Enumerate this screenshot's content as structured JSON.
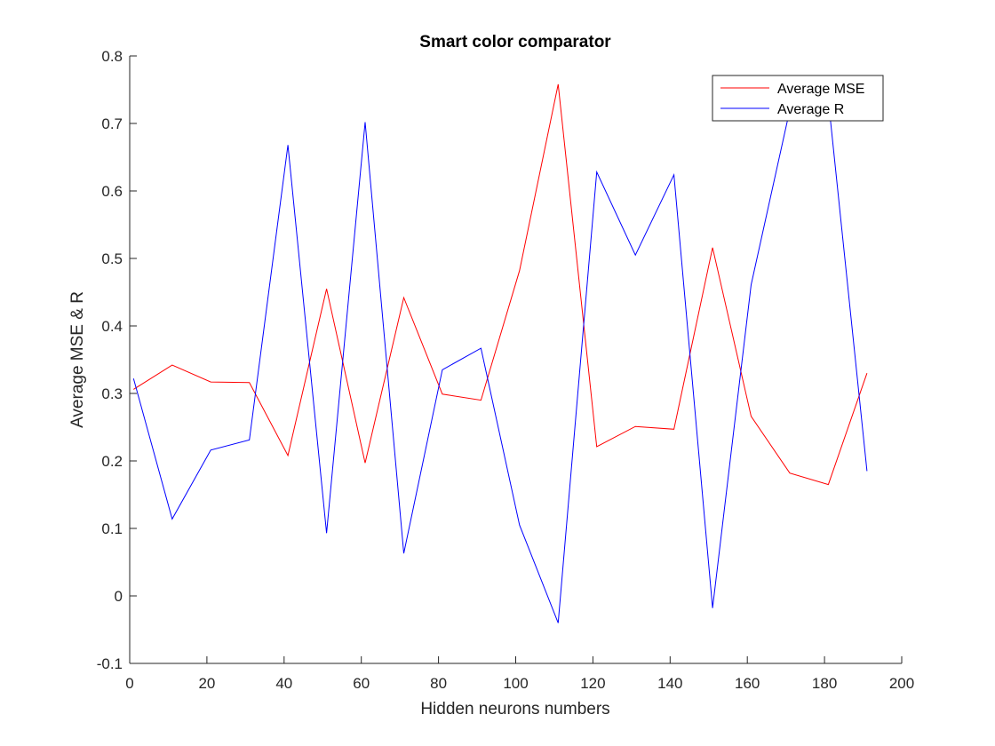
{
  "chart_data": {
    "type": "line",
    "title": "Smart color comparator",
    "xlabel": "Hidden neurons numbers",
    "ylabel": "Average MSE & R",
    "xlim": [
      0,
      200
    ],
    "ylim": [
      -0.1,
      0.8
    ],
    "xticks": [
      "0",
      "20",
      "40",
      "60",
      "80",
      "100",
      "120",
      "140",
      "160",
      "180",
      "200"
    ],
    "yticks": [
      "-0.1",
      "0",
      "0.1",
      "0.2",
      "0.3",
      "0.4",
      "0.5",
      "0.6",
      "0.7",
      "0.8"
    ],
    "grid": false,
    "legend_position": "top-right",
    "x": [
      1,
      11,
      21,
      31,
      41,
      51,
      61,
      71,
      81,
      91,
      101,
      111,
      121,
      131,
      141,
      151,
      161,
      171,
      181,
      191
    ],
    "series": [
      {
        "name": "Average MSE",
        "color": "#ff0000",
        "values": [
          0.306,
          0.342,
          0.317,
          0.316,
          0.208,
          0.455,
          0.197,
          0.442,
          0.299,
          0.29,
          0.482,
          0.758,
          0.221,
          0.251,
          0.247,
          0.516,
          0.266,
          0.182,
          0.165,
          0.33
        ]
      },
      {
        "name": "Average R",
        "color": "#0000ff",
        "values": [
          0.322,
          0.114,
          0.216,
          0.231,
          0.668,
          0.093,
          0.702,
          0.063,
          0.335,
          0.367,
          0.105,
          -0.04,
          0.628,
          0.505,
          0.624,
          -0.018,
          0.461,
          0.72,
          0.735,
          0.185
        ]
      }
    ]
  }
}
